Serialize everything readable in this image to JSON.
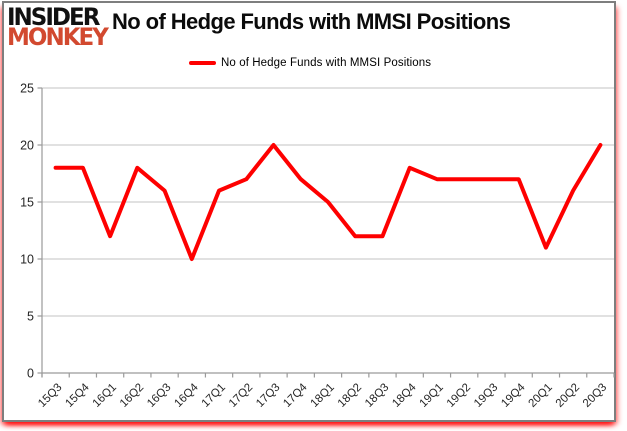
{
  "logo": {
    "line1": "INSIDER",
    "line2": "MONKEY"
  },
  "header": {
    "title": "No of Hedge Funds with MMSI Positions"
  },
  "legend": {
    "label": "No of Hedge Funds with MMSI Positions"
  },
  "colors": {
    "series_line": "#fe0000",
    "logo_insider": "#111111",
    "logo_monkey": "#d2492f",
    "grid": "#c3c3c3",
    "axis": "#9a9a9a",
    "tick_mark": "#9a9a9a",
    "tick_label": "#262626",
    "border": "#7e7e7e",
    "glow": "#ff0000",
    "background": "#ffffff"
  },
  "chart_data": {
    "type": "line",
    "title": "No of Hedge Funds with MMSI Positions",
    "categories": [
      "15Q3",
      "15Q4",
      "16Q1",
      "16Q2",
      "16Q3",
      "16Q4",
      "17Q1",
      "17Q2",
      "17Q3",
      "17Q4",
      "18Q1",
      "18Q2",
      "18Q3",
      "18Q4",
      "19Q1",
      "19Q2",
      "19Q3",
      "19Q4",
      "20Q1",
      "20Q2",
      "20Q3"
    ],
    "series": [
      {
        "name": "No of Hedge Funds with MMSI Positions",
        "color": "#fe0000",
        "values": [
          18,
          18,
          12,
          18,
          16,
          10,
          16,
          17,
          20,
          17,
          15,
          12,
          12,
          18,
          17,
          17,
          17,
          17,
          11,
          16,
          20
        ]
      }
    ],
    "xlabel": "",
    "ylabel": "",
    "ylim": [
      0,
      25
    ],
    "yticks": [
      0,
      5,
      10,
      15,
      20,
      25
    ],
    "grid": true,
    "legend_position": "top-center"
  }
}
